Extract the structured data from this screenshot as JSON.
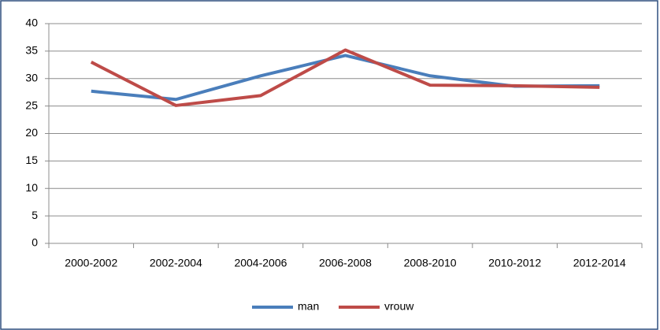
{
  "chart_data": {
    "type": "line",
    "categories": [
      "2000-2002",
      "2002-2004",
      "2004-2006",
      "2006-2008",
      "2008-2010",
      "2010-2012",
      "2012-2014"
    ],
    "series": [
      {
        "name": "man",
        "color": "#4a7ebb",
        "values": [
          27.7,
          26.2,
          30.5,
          34.2,
          30.5,
          28.6,
          28.7
        ]
      },
      {
        "name": "vrouw",
        "color": "#be4b48",
        "values": [
          33.0,
          25.1,
          26.9,
          35.2,
          28.8,
          28.7,
          28.4
        ]
      }
    ],
    "ylim": [
      0,
      40
    ],
    "yticks": [
      0,
      5,
      10,
      15,
      20,
      25,
      30,
      35,
      40
    ],
    "grid": true,
    "legend": "bottom"
  }
}
